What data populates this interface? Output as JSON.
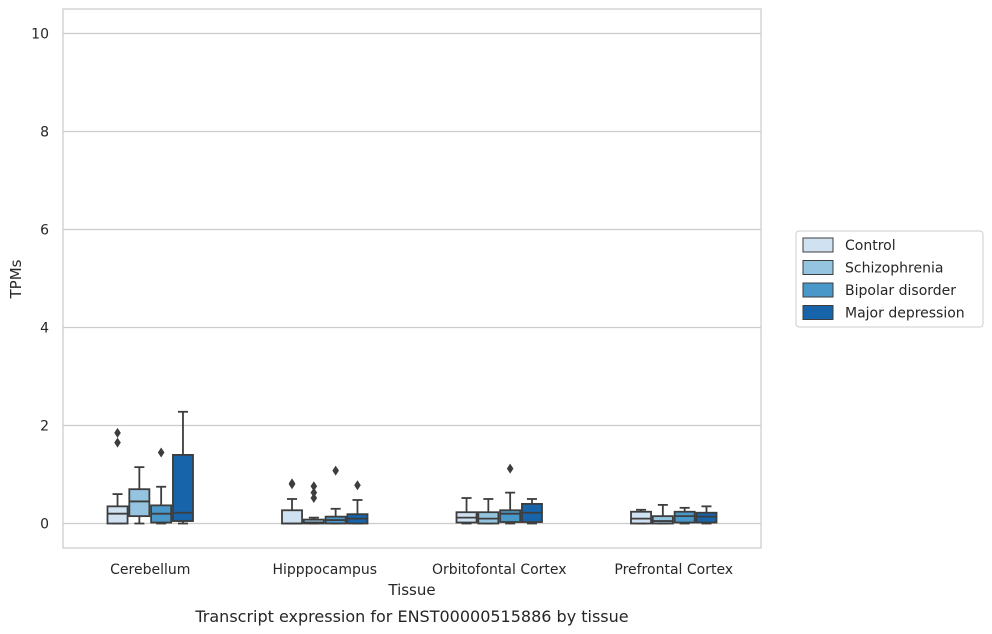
{
  "chart_data": {
    "type": "box",
    "xlabel": "Tissue",
    "ylabel": "TPMs",
    "caption": "Transcript expression for ENST00000515886 by tissue",
    "ylim": [
      -0.5,
      10.5
    ],
    "yticks": [
      0,
      2,
      4,
      6,
      8,
      10
    ],
    "grid": "horizontal",
    "legend_position": "right",
    "categories": [
      "Cerebellum",
      "Hipppocampus",
      "Orbitofontal Cortex",
      "Prefrontal Cortex"
    ],
    "series": [
      {
        "name": "Control",
        "color": "#d0e1f2",
        "boxes": [
          {
            "q1": 0.0,
            "median": 0.2,
            "q3": 0.35,
            "whisker_low": 0.0,
            "whisker_high": 0.6,
            "outliers": [
              1.65,
              1.85
            ]
          },
          {
            "q1": 0.0,
            "median": 0.0,
            "q3": 0.27,
            "whisker_low": 0.0,
            "whisker_high": 0.5,
            "outliers": [
              0.8,
              0.82
            ]
          },
          {
            "q1": 0.02,
            "median": 0.12,
            "q3": 0.23,
            "whisker_low": 0.0,
            "whisker_high": 0.52,
            "outliers": []
          },
          {
            "q1": 0.0,
            "median": 0.1,
            "q3": 0.24,
            "whisker_low": 0.0,
            "whisker_high": 0.28,
            "outliers": []
          }
        ]
      },
      {
        "name": "Schizophrenia",
        "color": "#94c4df",
        "boxes": [
          {
            "q1": 0.15,
            "median": 0.45,
            "q3": 0.7,
            "whisker_low": 0.0,
            "whisker_high": 1.15,
            "outliers": []
          },
          {
            "q1": 0.0,
            "median": 0.02,
            "q3": 0.08,
            "whisker_low": 0.0,
            "whisker_high": 0.12,
            "outliers": [
              0.52,
              0.63,
              0.76
            ]
          },
          {
            "q1": 0.0,
            "median": 0.1,
            "q3": 0.23,
            "whisker_low": 0.0,
            "whisker_high": 0.5,
            "outliers": []
          },
          {
            "q1": 0.0,
            "median": 0.05,
            "q3": 0.15,
            "whisker_low": 0.0,
            "whisker_high": 0.38,
            "outliers": []
          }
        ]
      },
      {
        "name": "Bipolar disorder",
        "color": "#4a98c9",
        "boxes": [
          {
            "q1": 0.02,
            "median": 0.2,
            "q3": 0.37,
            "whisker_low": 0.0,
            "whisker_high": 0.75,
            "outliers": [
              1.45
            ]
          },
          {
            "q1": 0.0,
            "median": 0.07,
            "q3": 0.14,
            "whisker_low": 0.0,
            "whisker_high": 0.3,
            "outliers": [
              1.08
            ]
          },
          {
            "q1": 0.03,
            "median": 0.2,
            "q3": 0.27,
            "whisker_low": 0.0,
            "whisker_high": 0.63,
            "outliers": [
              1.12
            ]
          },
          {
            "q1": 0.02,
            "median": 0.15,
            "q3": 0.24,
            "whisker_low": 0.0,
            "whisker_high": 0.32,
            "outliers": []
          }
        ]
      },
      {
        "name": "Major depression",
        "color": "#1764ab",
        "boxes": [
          {
            "q1": 0.05,
            "median": 0.22,
            "q3": 1.4,
            "whisker_low": 0.0,
            "whisker_high": 2.28,
            "outliers": []
          },
          {
            "q1": 0.0,
            "median": 0.1,
            "q3": 0.19,
            "whisker_low": 0.0,
            "whisker_high": 0.48,
            "outliers": [
              0.78
            ]
          },
          {
            "q1": 0.03,
            "median": 0.22,
            "q3": 0.4,
            "whisker_low": 0.0,
            "whisker_high": 0.5,
            "outliers": []
          },
          {
            "q1": 0.02,
            "median": 0.14,
            "q3": 0.22,
            "whisker_low": 0.0,
            "whisker_high": 0.35,
            "outliers": []
          }
        ]
      }
    ]
  }
}
